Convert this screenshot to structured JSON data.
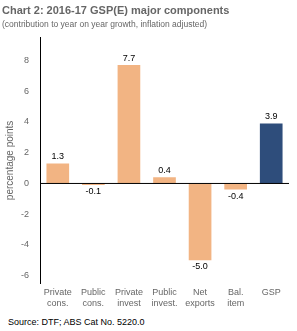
{
  "chart_data": {
    "type": "bar",
    "title": "Chart 2: 2016-17 GSP(E) major components",
    "subtitle": "(contribution to year on year growth, inflation adjusted)",
    "ylabel": "percentage points",
    "source": "Source: DTF; ABS Cat No. 5220.0",
    "categories": [
      "Private\ncons.",
      "Public\ncons.",
      "Private\ninvest",
      "Public\ninvest.",
      "Net\nexports",
      "Bal.\nitem",
      "GSP"
    ],
    "values": [
      1.3,
      -0.1,
      7.7,
      0.4,
      -5.0,
      -0.4,
      3.9
    ],
    "value_labels": [
      "1.3",
      "-0.1",
      "7.7",
      "0.4",
      "-5.0",
      "-0.4",
      "3.9"
    ],
    "colors": [
      "#f2b483",
      "#f2b483",
      "#f2b483",
      "#f2b483",
      "#f2b483",
      "#f2b483",
      "#2e4d7b"
    ],
    "ylim": [
      -6.5,
      9.5
    ],
    "yticks": [
      -6,
      -4,
      -2,
      0,
      2,
      4,
      6,
      8
    ],
    "grid": false,
    "data_labels": true
  }
}
